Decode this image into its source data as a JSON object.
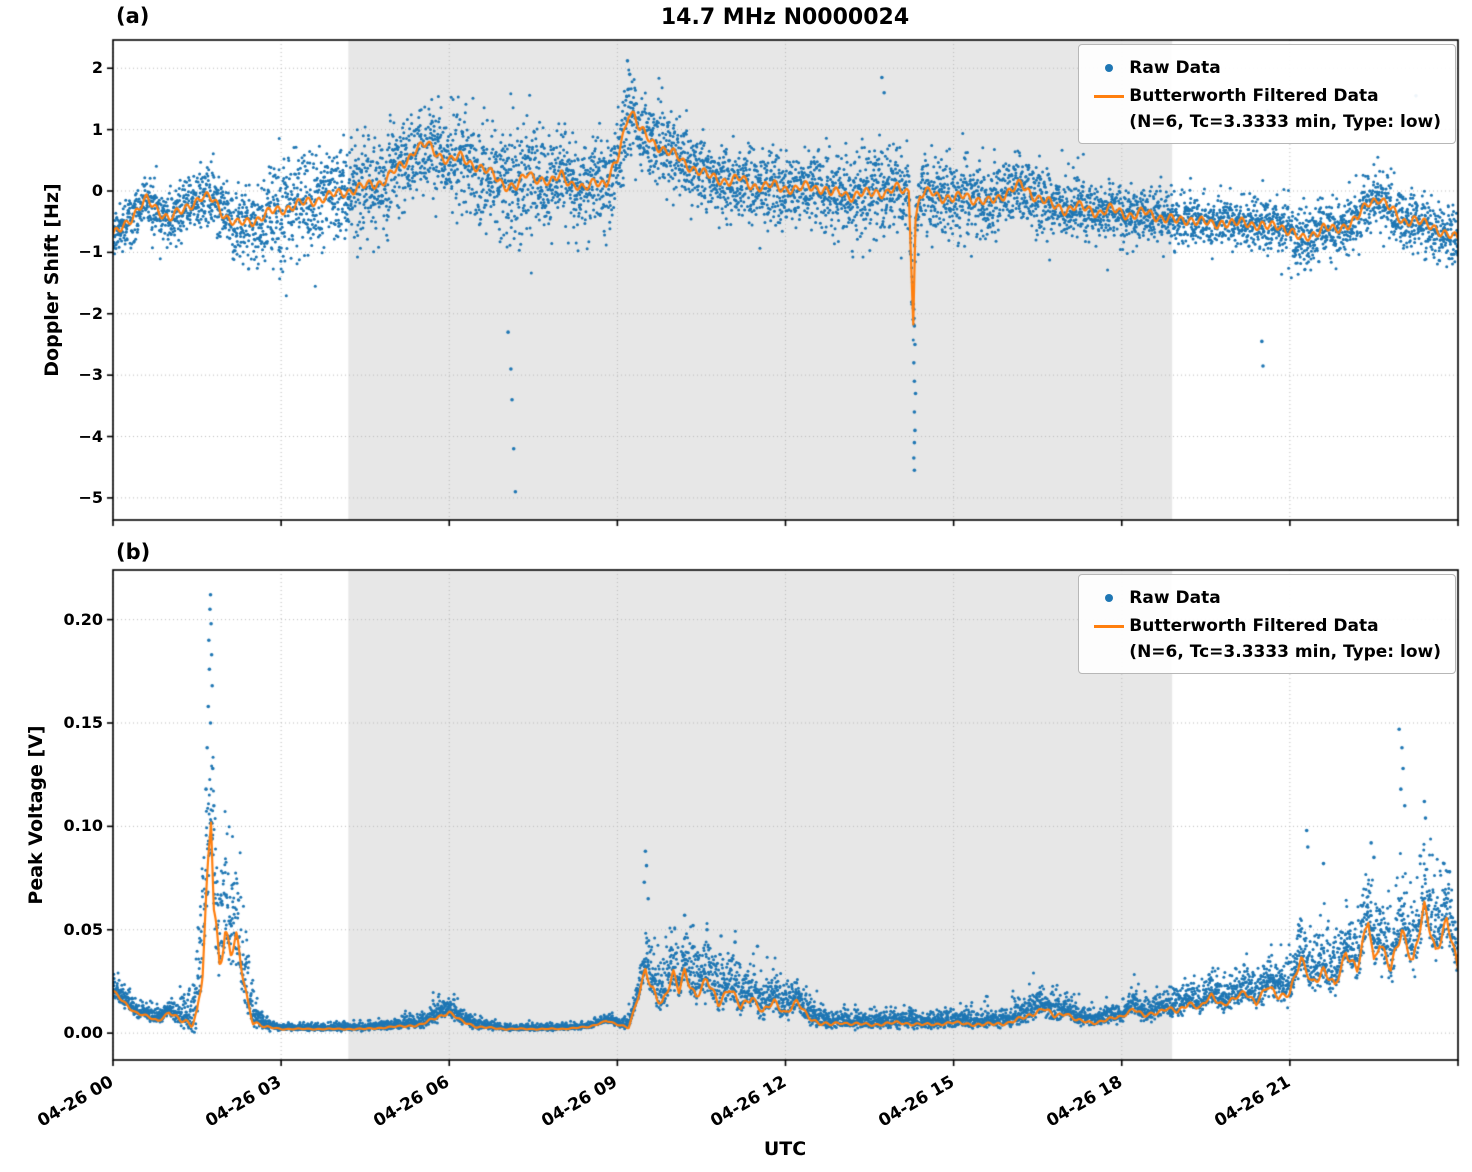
{
  "title": "14.7 MHz N0000024",
  "legend": {
    "raw_label": "Raw Data",
    "filtered_label": "Butterworth Filtered Data",
    "filtered_sublabel": "(N=6, Tc=3.3333 min, Type: low)"
  },
  "chart_data": {
    "type": "scatter",
    "title": "14.7 MHz N0000024",
    "xlabel": "UTC",
    "x_hours_range": [
      0,
      24
    ],
    "xticks": {
      "hours": [
        0,
        3,
        6,
        9,
        12,
        15,
        18,
        21
      ],
      "labels": [
        "04-26 00",
        "04-26 03",
        "04-26 06",
        "04-26 09",
        "04-26 12",
        "04-26 15",
        "04-26 18",
        "04-26 21"
      ]
    },
    "shaded_region_hours": [
      4.2,
      18.9
    ],
    "grid": true,
    "legend_position": "upper right",
    "colors": {
      "raw": "#1f77b4",
      "filtered": "#ff7f0e",
      "shade": "#e7e7e7",
      "grid": "#bbbbbb",
      "spine": "#000000"
    },
    "panel_a": {
      "tag": "(a)",
      "ylabel": "Doppler Shift [Hz]",
      "ylim": [
        -5.36,
        2.46
      ],
      "yticks": [
        2,
        1,
        0,
        -1,
        -2,
        -3,
        -4,
        -5
      ],
      "ytick_labels": [
        "2",
        "1",
        "0",
        "−1",
        "−2",
        "−3",
        "−4",
        "−5"
      ],
      "filtered": {
        "x": [
          0,
          0.2,
          0.4,
          0.6,
          0.8,
          1,
          1.2,
          1.4,
          1.6,
          1.8,
          2,
          2.2,
          2.4,
          2.6,
          2.8,
          3,
          3.2,
          3.4,
          3.6,
          3.8,
          4,
          4.2,
          4.4,
          4.6,
          4.8,
          5,
          5.2,
          5.4,
          5.6,
          5.8,
          6,
          6.2,
          6.4,
          6.6,
          6.8,
          7,
          7.2,
          7.4,
          7.6,
          7.8,
          8,
          8.2,
          8.4,
          8.6,
          8.8,
          9,
          9.1,
          9.2,
          9.3,
          9.4,
          9.6,
          9.8,
          10,
          10.2,
          10.4,
          10.6,
          10.8,
          11,
          11.2,
          11.4,
          11.6,
          11.8,
          12,
          12.2,
          12.4,
          12.6,
          12.8,
          13,
          13.2,
          13.4,
          13.6,
          13.8,
          14,
          14.2,
          14.28,
          14.32,
          14.4,
          14.6,
          14.8,
          15,
          15.2,
          15.4,
          15.6,
          15.8,
          16,
          16.2,
          16.4,
          16.6,
          16.8,
          17,
          17.2,
          17.4,
          17.6,
          17.8,
          18,
          18.2,
          18.4,
          18.6,
          18.8,
          19,
          19.2,
          19.4,
          19.6,
          19.8,
          20,
          20.2,
          20.4,
          20.6,
          20.8,
          21,
          21.2,
          21.4,
          21.6,
          21.8,
          22,
          22.2,
          22.4,
          22.6,
          22.8,
          23,
          23.2,
          23.4,
          23.6,
          23.8,
          24
        ],
        "y": [
          -0.75,
          -0.55,
          -0.35,
          -0.15,
          -0.3,
          -0.45,
          -0.35,
          -0.2,
          -0.1,
          -0.15,
          -0.4,
          -0.55,
          -0.5,
          -0.45,
          -0.35,
          -0.3,
          -0.25,
          -0.2,
          -0.15,
          -0.1,
          -0.05,
          0,
          0.05,
          0.1,
          0.15,
          0.3,
          0.45,
          0.7,
          0.75,
          0.6,
          0.5,
          0.55,
          0.45,
          0.35,
          0.25,
          0.1,
          0.05,
          0.3,
          0.2,
          0.1,
          0.3,
          0.1,
          0,
          0.2,
          0.1,
          0.5,
          0.9,
          1.3,
          1.25,
          1,
          0.8,
          0.7,
          0.6,
          0.45,
          0.35,
          0.25,
          0.2,
          0.15,
          0.2,
          0.1,
          0.05,
          0.1,
          0.05,
          0,
          0.1,
          0.05,
          -0.05,
          0,
          -0.1,
          -0.05,
          0,
          -0.05,
          0.05,
          0,
          -2.1,
          -0.5,
          -0.1,
          0,
          -0.1,
          -0.15,
          -0.05,
          -0.15,
          -0.2,
          -0.1,
          0,
          0.1,
          -0.05,
          -0.15,
          -0.25,
          -0.3,
          -0.25,
          -0.3,
          -0.35,
          -0.3,
          -0.35,
          -0.4,
          -0.35,
          -0.4,
          -0.45,
          -0.5,
          -0.45,
          -0.5,
          -0.55,
          -0.5,
          -0.55,
          -0.5,
          -0.55,
          -0.6,
          -0.55,
          -0.65,
          -0.8,
          -0.7,
          -0.6,
          -0.65,
          -0.55,
          -0.45,
          -0.2,
          -0.1,
          -0.3,
          -0.5,
          -0.45,
          -0.55,
          -0.6,
          -0.7,
          -0.8
        ]
      },
      "raw_spread": {
        "x": [
          0,
          1,
          2,
          2.5,
          3,
          4,
          5,
          6,
          7,
          8,
          9,
          10,
          11,
          12,
          13,
          14,
          15,
          16,
          17,
          18,
          19,
          20,
          21,
          22,
          23,
          24
        ],
        "s": [
          0.22,
          0.28,
          0.3,
          0.45,
          0.5,
          0.5,
          0.5,
          0.5,
          0.55,
          0.5,
          0.45,
          0.4,
          0.38,
          0.38,
          0.42,
          0.45,
          0.42,
          0.38,
          0.32,
          0.28,
          0.25,
          0.25,
          0.28,
          0.3,
          0.3,
          0.28
        ]
      },
      "outliers": [
        [
          14.3,
          -2.2
        ],
        [
          14.31,
          -2.5
        ],
        [
          14.29,
          -2.8
        ],
        [
          14.3,
          -3.1
        ],
        [
          14.32,
          -3.3
        ],
        [
          14.3,
          -3.6
        ],
        [
          14.31,
          -3.9
        ],
        [
          14.3,
          -4.1
        ],
        [
          14.29,
          -4.35
        ],
        [
          14.3,
          -4.55
        ],
        [
          7.05,
          -2.3
        ],
        [
          7.1,
          -2.9
        ],
        [
          7.12,
          -3.4
        ],
        [
          7.15,
          -4.2
        ],
        [
          7.18,
          -4.9
        ],
        [
          20.5,
          -2.45
        ],
        [
          20.52,
          -2.85
        ],
        [
          9.18,
          2.12
        ],
        [
          9.22,
          1.9
        ],
        [
          13.72,
          1.85
        ],
        [
          13.76,
          1.6
        ],
        [
          20.6,
          1.3
        ],
        [
          23.25,
          1.55
        ]
      ]
    },
    "panel_b": {
      "tag": "(b)",
      "ylabel": "Peak Voltage [V]",
      "ylim": [
        -0.013,
        0.224
      ],
      "yticks": [
        0.0,
        0.05,
        0.1,
        0.15,
        0.2
      ],
      "ytick_labels": [
        "0.00",
        "0.05",
        "0.10",
        "0.15",
        "0.20"
      ],
      "filtered": {
        "x": [
          0,
          0.2,
          0.4,
          0.6,
          0.8,
          1,
          1.2,
          1.4,
          1.5,
          1.6,
          1.7,
          1.75,
          1.8,
          1.9,
          2,
          2.1,
          2.2,
          2.3,
          2.4,
          2.5,
          2.7,
          3,
          3.5,
          4,
          4.5,
          5,
          5.5,
          5.8,
          6,
          6.2,
          6.5,
          7,
          7.5,
          8,
          8.5,
          8.8,
          9,
          9.2,
          9.4,
          9.5,
          9.6,
          9.8,
          10,
          10.1,
          10.2,
          10.4,
          10.6,
          10.8,
          11,
          11.2,
          11.4,
          11.6,
          11.8,
          12,
          12.2,
          12.4,
          12.6,
          12.8,
          13,
          13.5,
          14,
          14.5,
          15,
          15.5,
          16,
          16.3,
          16.6,
          16.8,
          17,
          17.2,
          17.5,
          18,
          18.2,
          18.4,
          18.6,
          18.8,
          19,
          19.2,
          19.4,
          19.6,
          19.8,
          20,
          20.2,
          20.4,
          20.6,
          20.8,
          21,
          21.2,
          21.4,
          21.6,
          21.8,
          22,
          22.2,
          22.4,
          22.5,
          22.6,
          22.8,
          23,
          23.2,
          23.4,
          23.6,
          23.8,
          24
        ],
        "y": [
          0.02,
          0.015,
          0.01,
          0.008,
          0.006,
          0.01,
          0.006,
          0.005,
          0.01,
          0.03,
          0.08,
          0.103,
          0.06,
          0.035,
          0.05,
          0.04,
          0.045,
          0.03,
          0.015,
          0.006,
          0.003,
          0.002,
          0.002,
          0.002,
          0.002,
          0.003,
          0.004,
          0.008,
          0.01,
          0.006,
          0.003,
          0.002,
          0.002,
          0.002,
          0.003,
          0.006,
          0.004,
          0.003,
          0.02,
          0.03,
          0.022,
          0.015,
          0.028,
          0.02,
          0.03,
          0.018,
          0.025,
          0.015,
          0.022,
          0.012,
          0.018,
          0.01,
          0.015,
          0.01,
          0.015,
          0.008,
          0.005,
          0.004,
          0.005,
          0.004,
          0.005,
          0.004,
          0.005,
          0.004,
          0.005,
          0.008,
          0.012,
          0.008,
          0.01,
          0.006,
          0.005,
          0.008,
          0.012,
          0.008,
          0.01,
          0.012,
          0.01,
          0.015,
          0.012,
          0.018,
          0.014,
          0.016,
          0.02,
          0.015,
          0.022,
          0.018,
          0.02,
          0.035,
          0.025,
          0.03,
          0.022,
          0.04,
          0.03,
          0.055,
          0.035,
          0.045,
          0.03,
          0.05,
          0.035,
          0.06,
          0.04,
          0.055,
          0.03
        ]
      },
      "raw_spread": {
        "x": [
          0,
          0.5,
          1,
          1.4,
          1.6,
          1.8,
          2,
          2.3,
          2.6,
          3,
          4,
          5,
          5.6,
          6,
          6.4,
          7,
          8,
          9,
          9.3,
          9.6,
          10,
          10.5,
          11,
          11.5,
          12,
          12.5,
          13,
          14,
          15,
          16,
          16.5,
          17,
          17.5,
          18,
          19,
          20,
          20.5,
          21,
          21.5,
          22,
          22.5,
          23,
          23.5,
          24
        ],
        "s": [
          0.005,
          0.004,
          0.004,
          0.01,
          0.03,
          0.035,
          0.03,
          0.02,
          0.004,
          0.0015,
          0.0015,
          0.002,
          0.004,
          0.005,
          0.003,
          0.0015,
          0.0015,
          0.002,
          0.004,
          0.014,
          0.013,
          0.014,
          0.012,
          0.01,
          0.009,
          0.006,
          0.004,
          0.004,
          0.004,
          0.005,
          0.007,
          0.006,
          0.004,
          0.005,
          0.007,
          0.008,
          0.009,
          0.012,
          0.014,
          0.014,
          0.016,
          0.018,
          0.018,
          0.016
        ]
      },
      "outliers": [
        [
          1.74,
          0.212
        ],
        [
          1.73,
          0.205
        ],
        [
          1.75,
          0.198
        ],
        [
          1.71,
          0.19
        ],
        [
          1.76,
          0.183
        ],
        [
          1.72,
          0.176
        ],
        [
          1.77,
          0.168
        ],
        [
          1.7,
          0.158
        ],
        [
          1.74,
          0.15
        ],
        [
          1.68,
          0.138
        ],
        [
          1.78,
          0.128
        ],
        [
          1.66,
          0.118
        ],
        [
          1.8,
          0.11
        ],
        [
          9.5,
          0.088
        ],
        [
          9.52,
          0.081
        ],
        [
          9.48,
          0.073
        ],
        [
          9.55,
          0.065
        ],
        [
          10.2,
          0.057
        ],
        [
          10.35,
          0.052
        ],
        [
          10.6,
          0.05
        ],
        [
          10.85,
          0.047
        ],
        [
          11.1,
          0.044
        ],
        [
          11.5,
          0.042
        ],
        [
          21.3,
          0.098
        ],
        [
          21.32,
          0.09
        ],
        [
          21.6,
          0.082
        ],
        [
          22.45,
          0.092
        ],
        [
          22.5,
          0.085
        ],
        [
          22.95,
          0.147
        ],
        [
          23,
          0.138
        ],
        [
          23.02,
          0.128
        ],
        [
          22.98,
          0.118
        ],
        [
          23.05,
          0.11
        ],
        [
          23.4,
          0.112
        ],
        [
          23.42,
          0.104
        ],
        [
          23.75,
          0.082
        ],
        [
          23.85,
          0.078
        ]
      ]
    }
  }
}
